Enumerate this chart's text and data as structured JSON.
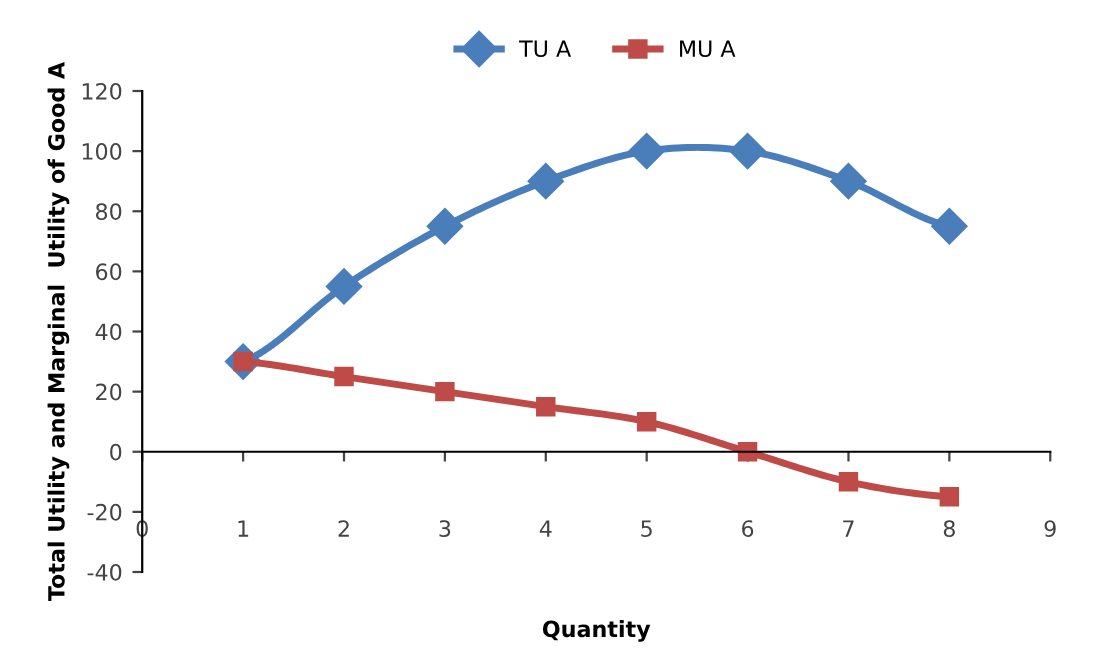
{
  "chart_data": {
    "type": "line",
    "xlabel": "Quantity",
    "ylabel": "Total Utility and Marginal  Utility of Good A",
    "x": [
      1,
      2,
      3,
      4,
      5,
      6,
      7,
      8
    ],
    "series": [
      {
        "name": "TU A",
        "color": "#4a7ebb",
        "marker": "diamond",
        "values": [
          30,
          55,
          75,
          90,
          100,
          100,
          90,
          75
        ]
      },
      {
        "name": "MU A",
        "color": "#be4b48",
        "marker": "square",
        "values": [
          30,
          25,
          20,
          15,
          10,
          0,
          -10,
          -15
        ]
      }
    ],
    "xlim": [
      0,
      9
    ],
    "xticks": [
      0,
      1,
      2,
      3,
      4,
      5,
      6,
      7,
      8,
      9
    ],
    "ylim": [
      -40,
      120
    ],
    "yticks": [
      -40,
      -20,
      0,
      20,
      40,
      60,
      80,
      100,
      120
    ],
    "legend": "top",
    "line_style": "solid"
  }
}
